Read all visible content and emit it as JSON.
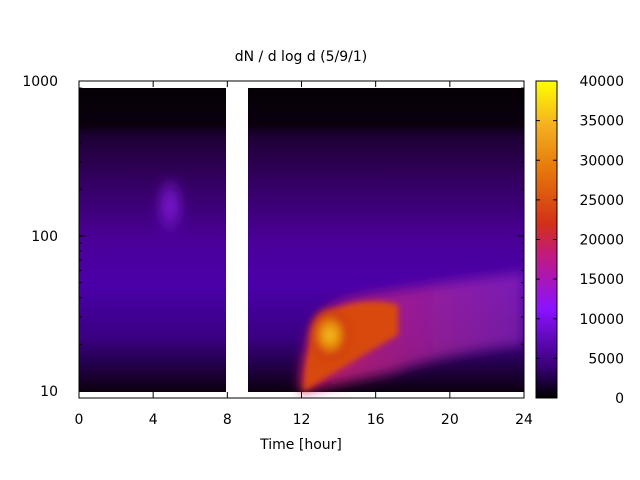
{
  "chart_data": {
    "type": "heatmap",
    "title": "dN / d log d (5/9/1)",
    "xlabel": "Time [hour]",
    "ylabel": "",
    "xlim": [
      0,
      24
    ],
    "ylim": [
      9,
      1000
    ],
    "y_scale": "log",
    "x_ticks": [
      0,
      4,
      8,
      12,
      16,
      20,
      24
    ],
    "x_tick_labels": [
      "0",
      "4",
      "8",
      "12",
      "16",
      "20",
      "24"
    ],
    "y_ticks": [
      10,
      100,
      1000
    ],
    "y_tick_labels": [
      "10",
      "100",
      "1000"
    ],
    "colorbar": {
      "min": 0,
      "max": 40000,
      "ticks": [
        0,
        5000,
        10000,
        15000,
        20000,
        25000,
        30000,
        35000,
        40000
      ],
      "tick_labels": [
        "0",
        "5000",
        "10000",
        "15000",
        "20000",
        "25000",
        "30000",
        "35000",
        "40000"
      ],
      "colormap": [
        "#000000",
        "#3a0078",
        "#8a12ff",
        "#c21a80",
        "#d23018",
        "#e6780a",
        "#f4b020",
        "#ffff00"
      ]
    },
    "measured_range": [
      10,
      900
    ],
    "data_gap_hours": [
      7.9,
      9.2
    ],
    "features": [
      {
        "t_start": 12.2,
        "t_end": 17.0,
        "diameter": [
          12,
          38
        ],
        "peak_value": 32000
      },
      {
        "t_start": 17.0,
        "t_end": 24.0,
        "diameter": [
          18,
          45
        ],
        "peak_value": 14000
      },
      {
        "t_start": 4.5,
        "t_end": 5.5,
        "diameter": [
          90,
          260
        ],
        "peak_value": 9000
      }
    ]
  }
}
